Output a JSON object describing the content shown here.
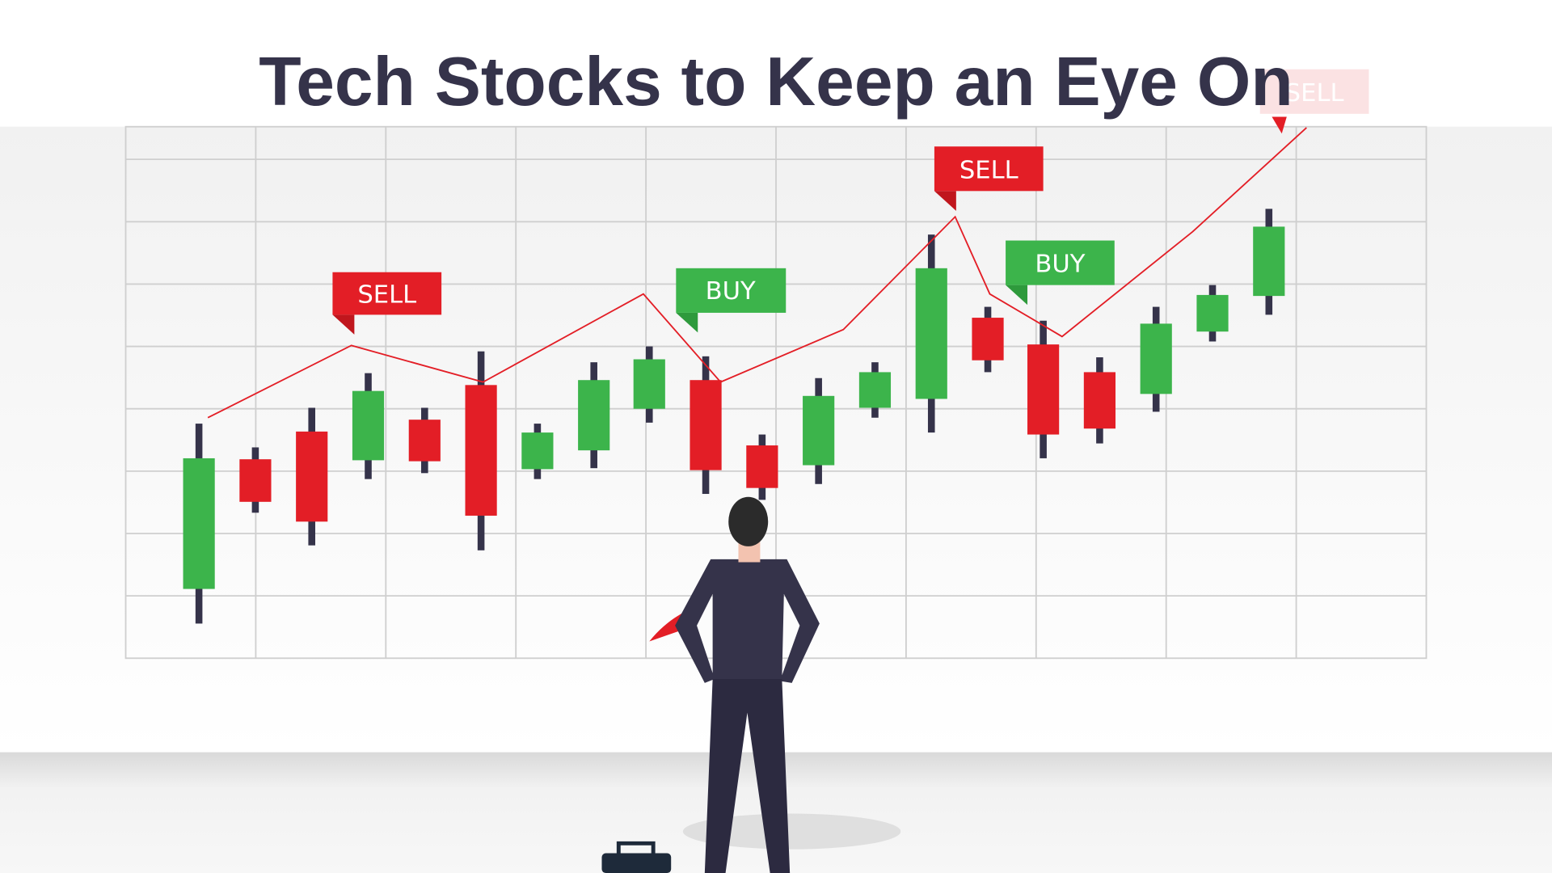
{
  "title": "Tech Stocks to Keep an Eye On",
  "signals": [
    "SELL",
    "BUY",
    "SELL",
    "BUY",
    "SELL"
  ]
}
